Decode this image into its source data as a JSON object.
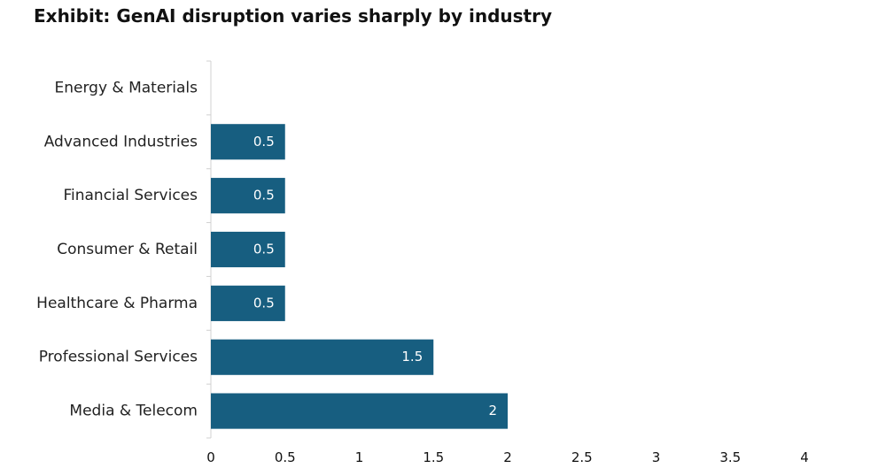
{
  "chart_data": {
    "type": "bar",
    "orientation": "horizontal",
    "title": "Exhibit: GenAI disruption varies sharply by industry",
    "categories": [
      "Energy & Materials",
      "Advanced Industries",
      "Financial Services",
      "Consumer & Retail",
      "Healthcare & Pharma",
      "Professional Services",
      "Media & Telecom"
    ],
    "values": [
      0,
      0.5,
      0.5,
      0.5,
      0.5,
      1.5,
      2
    ],
    "data_labels": [
      "",
      "0.5",
      "0.5",
      "0.5",
      "0.5",
      "1.5",
      "2"
    ],
    "xticks": [
      0,
      0.5,
      1,
      1.5,
      2,
      2.5,
      3,
      3.5,
      4
    ],
    "xtick_labels": [
      "0",
      "0.5",
      "1",
      "1.5",
      "2",
      "2.5",
      "3",
      "3.5",
      "4"
    ],
    "xlim": [
      0,
      4
    ],
    "xlabel": "",
    "ylabel": "",
    "grid": false,
    "legend": "none",
    "colors": {
      "bar": "#175e80",
      "axis": "#d0d0d0",
      "data_label": "#ffffff"
    }
  }
}
